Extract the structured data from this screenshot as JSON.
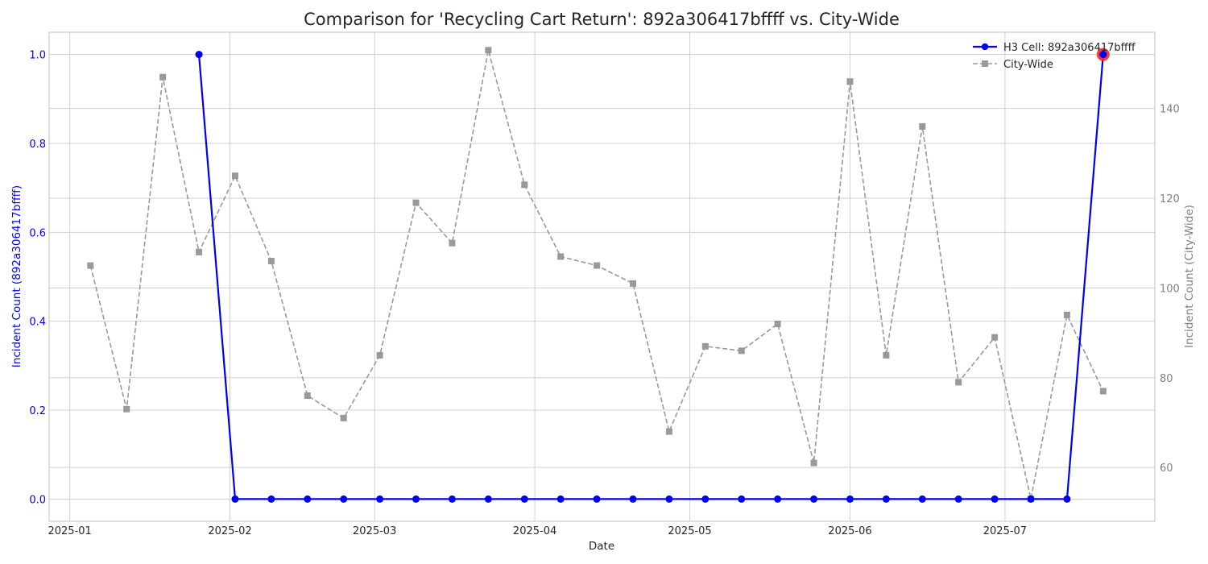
{
  "chart_data": {
    "type": "line",
    "title": "Comparison for 'Recycling Cart Return': 892a306417bffff vs. City-Wide",
    "xlabel": "Date",
    "ylabel_left": "Incident Count (892a306417bffff)",
    "ylabel_right": "Incident Count (City-Wide)",
    "x_ticks": [
      "2025-01",
      "2025-02",
      "2025-03",
      "2025-04",
      "2025-05",
      "2025-06",
      "2025-07"
    ],
    "y_left_ticks": [
      "0.0",
      "0.2",
      "0.4",
      "0.6",
      "0.8",
      "1.0"
    ],
    "y_right_ticks": [
      "60",
      "80",
      "100",
      "120",
      "140"
    ],
    "ylim_left": [
      -0.05,
      1.05
    ],
    "ylim_right": [
      48,
      157
    ],
    "grid": true,
    "legend_position": "top-right",
    "colors": {
      "cell": "#0000ee",
      "city": "#999999",
      "highlight": "#ff2222"
    },
    "series": [
      {
        "name": "H3 Cell: 892a306417bffff",
        "axis": "left",
        "style": "solid",
        "marker": "circle",
        "x": [
          "2025-01-26",
          "2025-02-02",
          "2025-02-09",
          "2025-02-16",
          "2025-02-23",
          "2025-03-02",
          "2025-03-09",
          "2025-03-16",
          "2025-03-23",
          "2025-03-30",
          "2025-04-06",
          "2025-04-13",
          "2025-04-20",
          "2025-04-27",
          "2025-05-04",
          "2025-05-11",
          "2025-05-18",
          "2025-05-25",
          "2025-06-01",
          "2025-06-08",
          "2025-06-15",
          "2025-06-22",
          "2025-06-29",
          "2025-07-06",
          "2025-07-13",
          "2025-07-20"
        ],
        "values": [
          1,
          0,
          0,
          0,
          0,
          0,
          0,
          0,
          0,
          0,
          0,
          0,
          0,
          0,
          0,
          0,
          0,
          0,
          0,
          0,
          0,
          0,
          0,
          0,
          0,
          1
        ]
      },
      {
        "name": "City-Wide",
        "axis": "right",
        "style": "dashed",
        "marker": "square",
        "x": [
          "2025-01-05",
          "2025-01-12",
          "2025-01-19",
          "2025-01-26",
          "2025-02-02",
          "2025-02-09",
          "2025-02-16",
          "2025-02-23",
          "2025-03-02",
          "2025-03-09",
          "2025-03-16",
          "2025-03-23",
          "2025-03-30",
          "2025-04-06",
          "2025-04-13",
          "2025-04-20",
          "2025-04-27",
          "2025-05-04",
          "2025-05-11",
          "2025-05-18",
          "2025-05-25",
          "2025-06-01",
          "2025-06-08",
          "2025-06-15",
          "2025-06-22",
          "2025-06-29",
          "2025-07-06",
          "2025-07-13",
          "2025-07-20"
        ],
        "values": [
          105,
          73,
          147,
          108,
          125,
          106,
          76,
          71,
          85,
          119,
          110,
          153,
          123,
          107,
          105,
          101,
          68,
          87,
          86,
          92,
          61,
          146,
          85,
          136,
          79,
          89,
          53,
          94,
          77
        ]
      }
    ],
    "highlight": {
      "series": 0,
      "x": "2025-07-20",
      "value": 1
    }
  }
}
